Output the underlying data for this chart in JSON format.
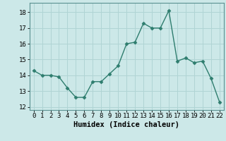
{
  "x": [
    0,
    1,
    2,
    3,
    4,
    5,
    6,
    7,
    8,
    9,
    10,
    11,
    12,
    13,
    14,
    15,
    16,
    17,
    18,
    19,
    20,
    21,
    22
  ],
  "y": [
    14.3,
    14.0,
    14.0,
    13.9,
    13.2,
    12.6,
    12.6,
    13.6,
    13.6,
    14.1,
    14.6,
    16.0,
    16.1,
    17.3,
    17.0,
    17.0,
    18.1,
    14.9,
    15.1,
    14.8,
    14.9,
    13.8,
    12.3
  ],
  "line_color": "#2e7d6e",
  "marker": "D",
  "marker_size": 2.5,
  "line_width": 1.0,
  "bg_color": "#cce8e8",
  "grid_color": "#b0d4d4",
  "xlabel": "Humidex (Indice chaleur)",
  "xlim": [
    -0.5,
    22.5
  ],
  "ylim": [
    11.8,
    18.6
  ],
  "yticks": [
    12,
    13,
    14,
    15,
    16,
    17,
    18
  ],
  "xticks": [
    0,
    1,
    2,
    3,
    4,
    5,
    6,
    7,
    8,
    9,
    10,
    11,
    12,
    13,
    14,
    15,
    16,
    17,
    18,
    19,
    20,
    21,
    22
  ],
  "xlabel_fontsize": 7.5,
  "tick_fontsize": 6.5
}
